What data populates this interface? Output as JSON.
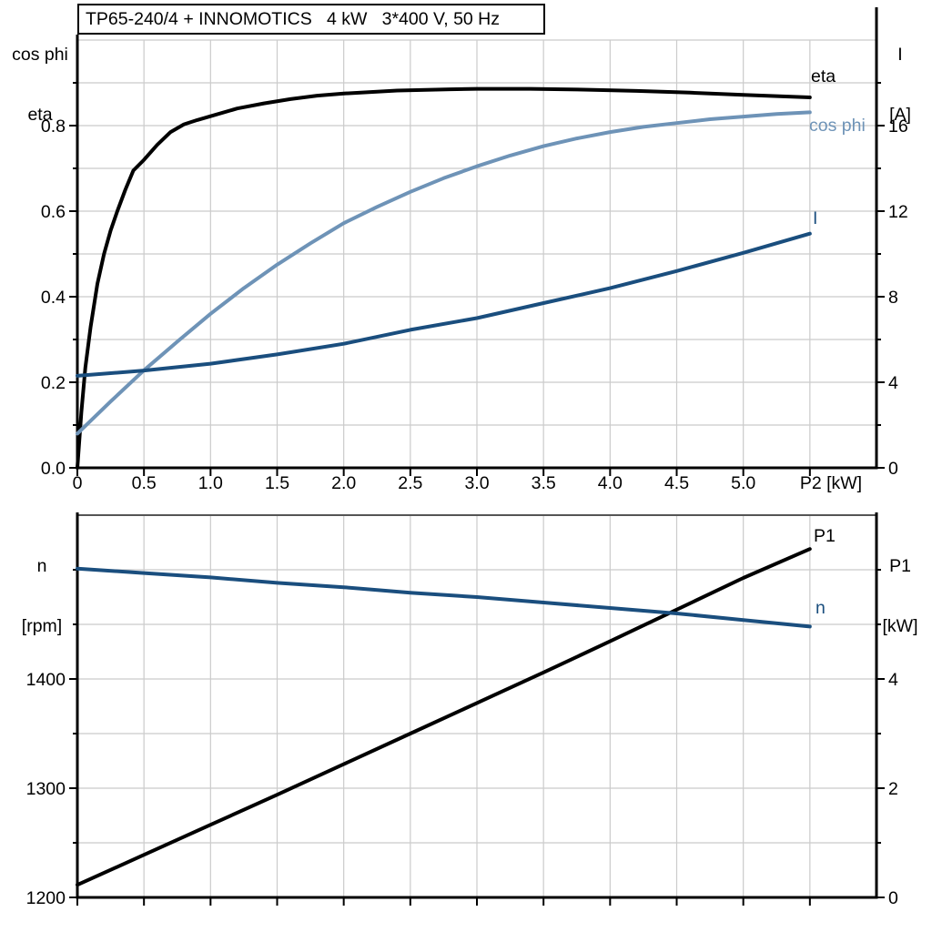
{
  "style": {
    "background": "#ffffff",
    "grid": "#cbcbcb",
    "axis": "#000000",
    "frame": "#555555"
  },
  "chart_data": [
    {
      "type": "line",
      "title": "TP65-240/4 + INNOMOTICS   4 kW   3*400 V, 50 Hz",
      "xlabel": "P2 [kW]",
      "x_range": [
        0,
        6.0
      ],
      "x_major_ticks": [
        0,
        0.5,
        1.0,
        1.5,
        2.0,
        2.5,
        3.0,
        3.5,
        4.0,
        4.5,
        5.0,
        5.5
      ],
      "x_tick_labels": [
        "0",
        "0.5",
        "1.0",
        "1.5",
        "2.0",
        "2.5",
        "3.0",
        "3.5",
        "4.0",
        "4.5",
        "5.0",
        "P2 [kW]"
      ],
      "grid": true,
      "left_axis": {
        "label_lines": [
          "cos phi",
          "eta"
        ],
        "range": [
          0,
          1.0
        ],
        "major_ticks": [
          0,
          0.2,
          0.4,
          0.6,
          0.8
        ],
        "major_labels": [
          "0.0",
          "0.2",
          "0.4",
          "0.6",
          "0.8"
        ],
        "minor_ticks": [
          0.1,
          0.3,
          0.5,
          0.7,
          0.9
        ],
        "gridlines": [
          0.1,
          0.2,
          0.3,
          0.4,
          0.5,
          0.6,
          0.7,
          0.8,
          0.9,
          1.0
        ]
      },
      "right_axis": {
        "label_lines": [
          "I",
          "[A]"
        ],
        "range": [
          0,
          20
        ],
        "major_ticks": [
          0,
          4,
          8,
          12,
          16
        ],
        "major_labels": [
          "0",
          "4",
          "8",
          "12",
          "16"
        ],
        "minor_ticks": [
          2,
          6,
          10,
          14,
          18
        ]
      },
      "series": [
        {
          "id": "efficiency-curve",
          "name": "eta",
          "axis": "left",
          "color": "#000000",
          "width": 4,
          "points": [
            [
              0,
              0
            ],
            [
              0.03,
              0.13
            ],
            [
              0.06,
              0.235
            ],
            [
              0.1,
              0.33
            ],
            [
              0.15,
              0.43
            ],
            [
              0.2,
              0.5
            ],
            [
              0.25,
              0.555
            ],
            [
              0.3,
              0.6
            ],
            [
              0.36,
              0.65
            ],
            [
              0.42,
              0.695
            ],
            [
              0.5,
              0.72
            ],
            [
              0.6,
              0.755
            ],
            [
              0.7,
              0.785
            ],
            [
              0.8,
              0.803
            ],
            [
              0.9,
              0.813
            ],
            [
              1.0,
              0.822
            ],
            [
              1.2,
              0.84
            ],
            [
              1.4,
              0.852
            ],
            [
              1.6,
              0.862
            ],
            [
              1.8,
              0.87
            ],
            [
              2.0,
              0.875
            ],
            [
              2.4,
              0.882
            ],
            [
              2.8,
              0.885
            ],
            [
              3.0,
              0.886
            ],
            [
              3.4,
              0.886
            ],
            [
              3.8,
              0.884
            ],
            [
              4.2,
              0.881
            ],
            [
              4.6,
              0.877
            ],
            [
              5.0,
              0.872
            ],
            [
              5.5,
              0.866
            ]
          ]
        },
        {
          "id": "cos-phi-curve",
          "name": "cos phi",
          "axis": "left",
          "color": "#6E93B7",
          "width": 4,
          "points": [
            [
              0,
              0.08
            ],
            [
              0.25,
              0.155
            ],
            [
              0.5,
              0.228
            ],
            [
              0.75,
              0.295
            ],
            [
              1.0,
              0.36
            ],
            [
              1.25,
              0.42
            ],
            [
              1.5,
              0.475
            ],
            [
              1.75,
              0.525
            ],
            [
              2.0,
              0.572
            ],
            [
              2.25,
              0.61
            ],
            [
              2.5,
              0.645
            ],
            [
              2.75,
              0.677
            ],
            [
              3.0,
              0.705
            ],
            [
              3.25,
              0.73
            ],
            [
              3.5,
              0.752
            ],
            [
              3.75,
              0.77
            ],
            [
              4.0,
              0.785
            ],
            [
              4.25,
              0.797
            ],
            [
              4.5,
              0.806
            ],
            [
              4.75,
              0.815
            ],
            [
              5.0,
              0.821
            ],
            [
              5.25,
              0.827
            ],
            [
              5.5,
              0.831
            ]
          ]
        },
        {
          "id": "current-curve",
          "name": "I",
          "axis": "right",
          "color": "#1A4E7E",
          "width": 4,
          "points": [
            [
              0,
              4.3
            ],
            [
              0.5,
              4.55
            ],
            [
              1.0,
              4.87
            ],
            [
              1.5,
              5.3
            ],
            [
              2.0,
              5.8
            ],
            [
              2.5,
              6.45
            ],
            [
              3.0,
              7.0
            ],
            [
              3.5,
              7.7
            ],
            [
              4.0,
              8.4
            ],
            [
              4.5,
              9.2
            ],
            [
              5.0,
              10.05
            ],
            [
              5.5,
              10.95
            ]
          ]
        }
      ]
    },
    {
      "type": "line",
      "title": "",
      "xlabel": "",
      "x_range": [
        0,
        6.0
      ],
      "x_major_ticks": [
        0,
        0.5,
        1.0,
        1.5,
        2.0,
        2.5,
        3.0,
        3.5,
        4.0,
        4.5,
        5.0,
        5.5
      ],
      "x_tick_labels": [],
      "grid": true,
      "top_frame": true,
      "left_axis": {
        "label_lines": [
          "n",
          "[rpm]"
        ],
        "range": [
          1200,
          1550
        ],
        "major_ticks": [
          1200,
          1300,
          1400
        ],
        "major_labels": [
          "1200",
          "1300",
          "1400"
        ],
        "minor_ticks": [
          1250,
          1350,
          1450,
          1500
        ],
        "gridlines": [
          1250,
          1300,
          1350,
          1400,
          1450,
          1500
        ]
      },
      "right_axis": {
        "label_lines": [
          "P1",
          "[kW]"
        ],
        "range": [
          0,
          7
        ],
        "major_ticks": [
          0,
          2,
          4
        ],
        "major_labels": [
          "0",
          "2",
          "4"
        ],
        "minor_ticks": [
          1,
          3,
          5,
          6
        ]
      },
      "series": [
        {
          "id": "input-power-curve",
          "name": "P1",
          "axis": "right",
          "color": "#000000",
          "width": 4,
          "points": [
            [
              0,
              0.23
            ],
            [
              0.5,
              0.78
            ],
            [
              1.0,
              1.33
            ],
            [
              1.5,
              1.88
            ],
            [
              2.0,
              2.44
            ],
            [
              2.5,
              3.0
            ],
            [
              3.0,
              3.56
            ],
            [
              3.5,
              4.12
            ],
            [
              4.0,
              4.69
            ],
            [
              4.5,
              5.27
            ],
            [
              5.0,
              5.85
            ],
            [
              5.5,
              6.38
            ]
          ]
        },
        {
          "id": "speed-curve",
          "name": "n",
          "axis": "left",
          "color": "#1A4E7E",
          "width": 4,
          "points": [
            [
              0,
              1501
            ],
            [
              0.5,
              1497
            ],
            [
              1.0,
              1493
            ],
            [
              1.5,
              1488
            ],
            [
              2.0,
              1484
            ],
            [
              2.5,
              1479
            ],
            [
              3.0,
              1475
            ],
            [
              3.5,
              1470
            ],
            [
              4.0,
              1465
            ],
            [
              4.5,
              1460
            ],
            [
              5.0,
              1454
            ],
            [
              5.5,
              1448
            ]
          ]
        }
      ]
    }
  ]
}
